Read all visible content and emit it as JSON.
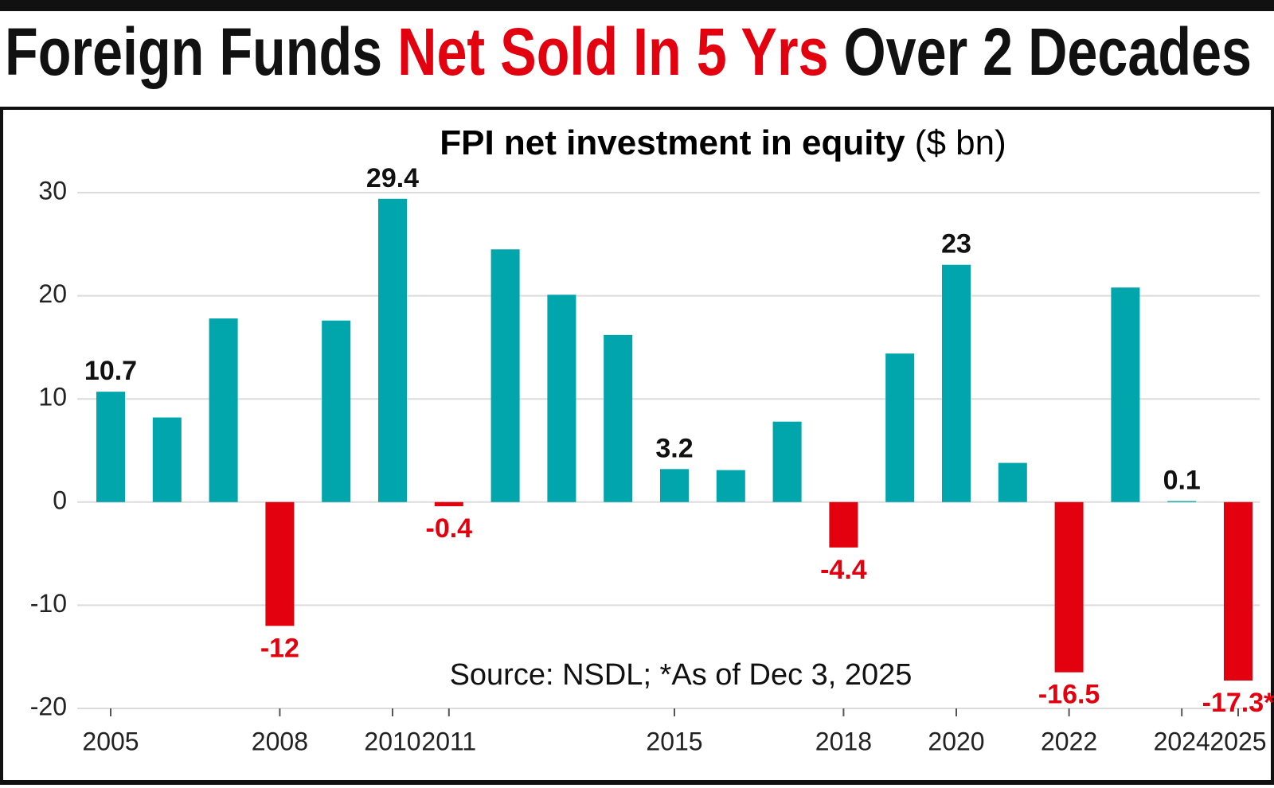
{
  "chart_data": {
    "type": "bar",
    "title": [
      "Foreign Funds",
      "Net Sold In 5 Yrs",
      "Over 2 Decades"
    ],
    "subtitle": "FPI net investment in equity",
    "unit": "($ bn)",
    "source": "Source: NSDL; *As of Dec 3, 2025",
    "categories": [
      "2005",
      null,
      null,
      "2008",
      null,
      "2010",
      "2011",
      null,
      null,
      null,
      "2015",
      null,
      null,
      "2018",
      null,
      "2020",
      null,
      "2022",
      null,
      "2024",
      "2025"
    ],
    "values": [
      10.7,
      8.2,
      17.8,
      -12,
      17.6,
      29.4,
      -0.4,
      24.5,
      20.1,
      16.2,
      3.2,
      3.1,
      7.8,
      -4.4,
      14.4,
      23,
      3.8,
      -16.5,
      20.8,
      0.1,
      -17.3
    ],
    "value_labels": [
      "10.7",
      null,
      null,
      "-12",
      null,
      "29.4",
      "-0.4",
      null,
      null,
      null,
      "3.2",
      null,
      null,
      "-4.4",
      null,
      "23",
      null,
      "-16.5",
      null,
      "0.1",
      "-17.3*"
    ],
    "color": "#00a6ab",
    "negative_color": "#e3000f",
    "ylim": [
      -20,
      30
    ],
    "yticks": [
      -20,
      -10,
      0,
      10,
      20,
      30
    ],
    "grid": true
  }
}
